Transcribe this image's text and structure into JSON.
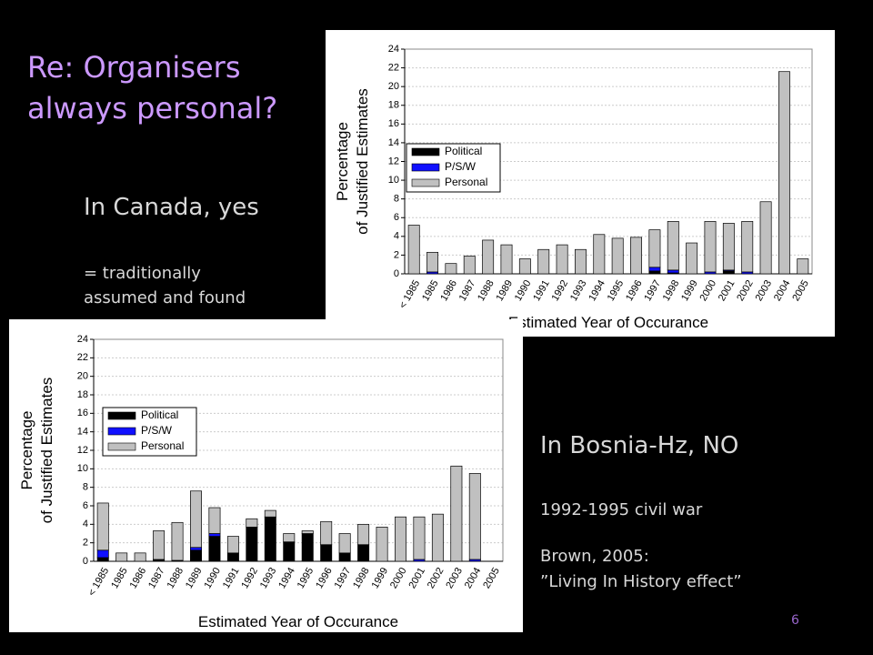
{
  "slide": {
    "title": [
      "Re: Organisers",
      "always personal?"
    ],
    "canada_heading": "In Canada, yes",
    "canada_note": [
      "= traditionally",
      "assumed and found"
    ],
    "bosnia_heading": "In Bosnia-Hz, NO",
    "bosnia_note1": "1992-1995 civil war",
    "bosnia_note2": [
      "Brown, 2005:",
      "”Living In History effect”"
    ],
    "page_number": "6"
  },
  "chart_data": [
    {
      "type": "bar",
      "stacked": true,
      "y_label": [
        "Percentage",
        "of Justified Estimates"
      ],
      "x_label": "Estimated Year of Occurance",
      "categories": [
        "< 1985",
        "1985",
        "1986",
        "1987",
        "1988",
        "1989",
        "1990",
        "1991",
        "1992",
        "1993",
        "1994",
        "1995",
        "1996",
        "1997",
        "1998",
        "1999",
        "2000",
        "2001",
        "2002",
        "2003",
        "2004",
        "2005"
      ],
      "series": [
        {
          "name": "Political",
          "color": "#000000",
          "values": [
            0,
            0,
            0,
            0,
            0,
            0,
            0,
            0,
            0,
            0,
            0,
            0,
            0,
            0.3,
            0.1,
            0,
            0,
            0.3,
            0,
            0,
            0,
            0
          ]
        },
        {
          "name": "P/S/W",
          "color": "#1010ff",
          "values": [
            0,
            0.2,
            0,
            0,
            0,
            0,
            0,
            0,
            0,
            0,
            0,
            0,
            0,
            0.4,
            0.3,
            0,
            0.2,
            0.1,
            0.2,
            0,
            0,
            0
          ]
        },
        {
          "name": "Personal",
          "color": "#c0c0c0",
          "values": [
            5.2,
            2.1,
            1.1,
            1.9,
            3.6,
            3.1,
            1.6,
            2.6,
            3.1,
            2.6,
            4.2,
            3.8,
            3.9,
            4.0,
            5.2,
            3.3,
            5.4,
            5.0,
            5.4,
            7.7,
            21.6,
            1.6
          ]
        }
      ],
      "ylim": [
        0,
        24
      ],
      "yticks": [
        0,
        2,
        4,
        6,
        8,
        10,
        12,
        14,
        16,
        18,
        20,
        22,
        24
      ],
      "grid": true,
      "legend": "left"
    },
    {
      "type": "bar",
      "stacked": true,
      "y_label": [
        "Percentage",
        "of Justified Estimates"
      ],
      "x_label": "Estimated Year of Occurance",
      "categories": [
        "< 1985",
        "1985",
        "1986",
        "1987",
        "1988",
        "1989",
        "1990",
        "1991",
        "1992",
        "1993",
        "1994",
        "1995",
        "1996",
        "1997",
        "1998",
        "1999",
        "2000",
        "2001",
        "2002",
        "2003",
        "2004",
        "2005"
      ],
      "series": [
        {
          "name": "Political",
          "color": "#000000",
          "values": [
            0.4,
            0,
            0,
            0.2,
            0.1,
            1.2,
            2.7,
            0.9,
            3.7,
            4.8,
            2.1,
            3.0,
            1.8,
            0.9,
            1.8,
            0,
            0,
            0,
            0,
            0,
            0,
            0
          ]
        },
        {
          "name": "P/S/W",
          "color": "#1010ff",
          "values": [
            0.8,
            0,
            0,
            0,
            0,
            0.3,
            0.3,
            0,
            0,
            0,
            0,
            0,
            0,
            0,
            0,
            0,
            0,
            0.2,
            0,
            0,
            0.2,
            0
          ]
        },
        {
          "name": "Personal",
          "color": "#c0c0c0",
          "values": [
            5.1,
            0.9,
            0.9,
            3.1,
            4.1,
            6.1,
            2.8,
            1.8,
            0.9,
            0.7,
            0.9,
            0.3,
            2.5,
            2.1,
            2.2,
            3.7,
            4.8,
            4.6,
            5.1,
            10.3,
            9.3,
            0
          ]
        }
      ],
      "ylim": [
        0,
        24
      ],
      "yticks": [
        0,
        2,
        4,
        6,
        8,
        10,
        12,
        14,
        16,
        18,
        20,
        22,
        24
      ],
      "grid": true,
      "legend": "left"
    }
  ]
}
